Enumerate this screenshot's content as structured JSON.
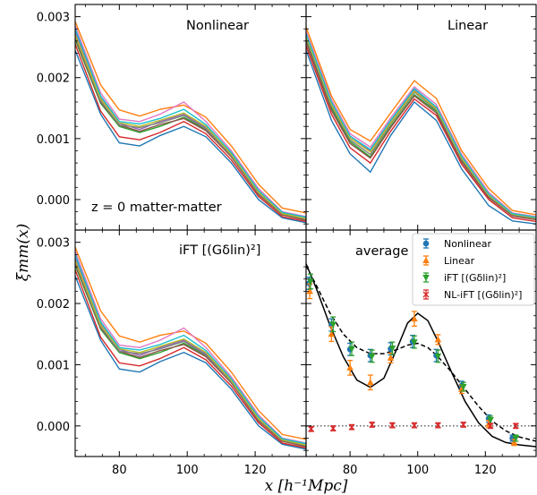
{
  "figure": {
    "xlabel": "x [h⁻¹Mpc]",
    "ylabel": "ξmm(x)"
  },
  "chart_data": {
    "type": "line",
    "x": [
      67,
      74.5,
      80,
      86,
      92,
      99,
      105.5,
      113,
      121,
      128,
      135
    ],
    "xlim": [
      67,
      135
    ],
    "ylim": [
      -0.0005,
      0.0032
    ],
    "x_ticks": [
      80,
      100,
      120
    ],
    "x_tick_labels": [
      "80",
      "100",
      "120"
    ],
    "y_ticks": [
      0,
      0.001,
      0.002,
      0.003
    ],
    "y_tick_labels": [
      "0.000",
      "0.001",
      "0.002",
      "0.003"
    ],
    "colors": [
      "#1f77b4",
      "#ff7f0e",
      "#2ca02c",
      "#d62728",
      "#9467bd",
      "#8c564b",
      "#e377c2",
      "#7f7f7f",
      "#bcbd22",
      "#17becf"
    ],
    "panels": [
      {
        "id": "nonlinear",
        "label": "Nonlinear",
        "note": "z = 0  matter-matter",
        "curves": [
          [
            0.00245,
            0.0014,
            0.00093,
            0.00088,
            0.00105,
            0.0012,
            0.00103,
            0.0006,
            0.0,
            -0.0003,
            -0.00038
          ],
          [
            0.00292,
            0.00188,
            0.00147,
            0.00137,
            0.00148,
            0.00155,
            0.00135,
            0.00088,
            0.00025,
            -0.00014,
            -0.00022
          ],
          [
            0.00262,
            0.00158,
            0.0012,
            0.0011,
            0.0012,
            0.00135,
            0.00115,
            0.0007,
            0.0001,
            -0.00025,
            -0.00033
          ],
          [
            0.00255,
            0.00145,
            0.00103,
            0.00098,
            0.0011,
            0.00128,
            0.00108,
            0.00065,
            5e-05,
            -0.00028,
            -0.00036
          ],
          [
            0.00275,
            0.00168,
            0.00125,
            0.00115,
            0.00128,
            0.0014,
            0.00118,
            0.00075,
            0.00012,
            -0.00022,
            -0.0003
          ],
          [
            0.00265,
            0.0016,
            0.00122,
            0.00112,
            0.00123,
            0.00133,
            0.00113,
            0.0007,
            8e-05,
            -0.00025,
            -0.00034
          ],
          [
            0.00285,
            0.00175,
            0.00132,
            0.00128,
            0.0014,
            0.0016,
            0.00128,
            0.0008,
            0.00018,
            -0.0002,
            -0.00028
          ],
          [
            0.00268,
            0.00162,
            0.00122,
            0.00118,
            0.00126,
            0.00138,
            0.00116,
            0.00072,
            0.0001,
            -0.00023,
            -0.00032
          ],
          [
            0.0027,
            0.00165,
            0.00126,
            0.0012,
            0.0013,
            0.00142,
            0.0012,
            0.00074,
            0.00012,
            -0.00023,
            -0.00031
          ],
          [
            0.0028,
            0.0017,
            0.00128,
            0.00124,
            0.00133,
            0.00148,
            0.00123,
            0.00077,
            0.00015,
            -0.00021,
            -0.00029
          ]
        ]
      },
      {
        "id": "linear",
        "label": "Linear",
        "note": "",
        "curves": [
          [
            0.00245,
            0.0013,
            0.00075,
            0.00045,
            0.00105,
            0.0016,
            0.0013,
            0.0005,
            -0.0001,
            -0.00035,
            -0.0004
          ],
          [
            0.00283,
            0.0017,
            0.00115,
            0.00096,
            0.00142,
            0.00195,
            0.00166,
            0.0008,
            0.00018,
            -0.00018,
            -0.00025
          ],
          [
            0.00262,
            0.0015,
            0.00095,
            0.0007,
            0.0012,
            0.00172,
            0.00145,
            0.00065,
            5e-05,
            -0.00026,
            -0.00032
          ],
          [
            0.00252,
            0.0014,
            0.00085,
            0.0006,
            0.00112,
            0.00165,
            0.00138,
            0.00058,
            0.0,
            -0.0003,
            -0.00036
          ],
          [
            0.0027,
            0.00158,
            0.00104,
            0.0008,
            0.00128,
            0.0018,
            0.0015,
            0.0007,
            8e-05,
            -0.00024,
            -0.0003
          ],
          [
            0.00258,
            0.00146,
            0.00092,
            0.00068,
            0.00118,
            0.0017,
            0.00142,
            0.00062,
            3e-05,
            -0.00027,
            -0.00033
          ],
          [
            0.00276,
            0.00164,
            0.00108,
            0.00086,
            0.00134,
            0.00185,
            0.00156,
            0.00074,
            0.00012,
            -0.00022,
            -0.00028
          ],
          [
            0.00265,
            0.00153,
            0.00098,
            0.00074,
            0.00124,
            0.00176,
            0.00147,
            0.00066,
            6e-05,
            -0.00025,
            -0.00031
          ],
          [
            0.00268,
            0.00156,
            0.00101,
            0.00078,
            0.00126,
            0.00178,
            0.00149,
            0.00068,
            7e-05,
            -0.00024,
            -0.0003
          ],
          [
            0.00272,
            0.0016,
            0.00104,
            0.00082,
            0.0013,
            0.00182,
            0.00152,
            0.00071,
            9e-05,
            -0.00023,
            -0.00029
          ]
        ]
      },
      {
        "id": "ift",
        "label": "iFT [(Gδlin)²]",
        "note": "",
        "curves": [
          [
            0.00245,
            0.0014,
            0.00093,
            0.00088,
            0.00105,
            0.0012,
            0.00103,
            0.0006,
            0.0,
            -0.0003,
            -0.00038
          ],
          [
            0.00292,
            0.00188,
            0.00147,
            0.00137,
            0.00148,
            0.00155,
            0.00135,
            0.00088,
            0.00025,
            -0.00014,
            -0.00022
          ],
          [
            0.00262,
            0.00158,
            0.0012,
            0.0011,
            0.0012,
            0.00135,
            0.00115,
            0.0007,
            0.0001,
            -0.00025,
            -0.00033
          ],
          [
            0.00255,
            0.00145,
            0.00103,
            0.00098,
            0.0011,
            0.00128,
            0.00108,
            0.00065,
            5e-05,
            -0.00028,
            -0.00036
          ],
          [
            0.00275,
            0.00168,
            0.00125,
            0.00115,
            0.00128,
            0.0014,
            0.00118,
            0.00075,
            0.00012,
            -0.00022,
            -0.0003
          ],
          [
            0.00265,
            0.0016,
            0.00122,
            0.00112,
            0.00123,
            0.00133,
            0.00113,
            0.0007,
            8e-05,
            -0.00025,
            -0.00034
          ],
          [
            0.00285,
            0.00175,
            0.00132,
            0.00128,
            0.0014,
            0.0016,
            0.00128,
            0.0008,
            0.00018,
            -0.0002,
            -0.00028
          ],
          [
            0.00268,
            0.00162,
            0.00122,
            0.00118,
            0.00126,
            0.00138,
            0.00116,
            0.00072,
            0.0001,
            -0.00023,
            -0.00032
          ],
          [
            0.0027,
            0.00165,
            0.00126,
            0.0012,
            0.0013,
            0.00142,
            0.0012,
            0.00074,
            0.00012,
            -0.00023,
            -0.00031
          ],
          [
            0.0028,
            0.0017,
            0.00128,
            0.00124,
            0.00133,
            0.00148,
            0.00123,
            0.00077,
            0.00015,
            -0.00021,
            -0.00029
          ]
        ]
      },
      {
        "id": "average",
        "label": "average",
        "note": "",
        "smooth_curves": [
          {
            "style": "solid",
            "x": [
              67,
              70,
              74,
              78,
              82,
              86,
              90,
              94,
              97,
              100,
              103,
              106,
              110,
              114,
              118,
              122,
              126,
              130,
              135
            ],
            "y": [
              0.00265,
              0.00225,
              0.00165,
              0.00113,
              0.00075,
              0.00063,
              0.00078,
              0.00128,
              0.00168,
              0.00184,
              0.00172,
              0.00138,
              0.00088,
              0.0004,
              5e-05,
              -0.00017,
              -0.00027,
              -0.00031,
              -0.00034
            ]
          },
          {
            "style": "dashed",
            "x": [
              67,
              70,
              74,
              78,
              82,
              86,
              90,
              94,
              97,
              100,
              103,
              106,
              110,
              114,
              118,
              122,
              126,
              130,
              135
            ],
            "y": [
              0.00262,
              0.0023,
              0.00185,
              0.0015,
              0.00128,
              0.00118,
              0.00118,
              0.00125,
              0.00132,
              0.00135,
              0.00128,
              0.00113,
              0.00088,
              0.0006,
              0.00032,
              8e-05,
              -8e-05,
              -0.00018,
              -0.00025
            ]
          },
          {
            "style": "dotted",
            "x": [
              67,
              135
            ],
            "y": [
              0.0,
              0.0
            ]
          }
        ],
        "series": [
          {
            "name": "Nonlinear",
            "marker": "circle",
            "color": "#1f77b4",
            "x": [
              67.9,
              74.5,
              80,
              86,
              92,
              98.5,
              105.5,
              113,
              121,
              128
            ],
            "y": [
              0.00233,
              0.00165,
              0.00125,
              0.00115,
              0.00126,
              0.00138,
              0.00115,
              0.00066,
              0.00012,
              -0.0002
            ],
            "err": [
              0.0001,
              0.0001,
              0.0001,
              0.0001,
              0.0001,
              0.0001,
              0.0001,
              7e-05,
              6e-05,
              5e-05
            ]
          },
          {
            "name": "Linear",
            "marker": "triangle-up",
            "color": "#ff7f0e",
            "x": [
              68.1,
              74.5,
              80,
              86,
              92,
              99,
              106,
              113,
              121,
              128.5
            ],
            "y": [
              0.0022,
              0.0015,
              0.00095,
              0.00071,
              0.00111,
              0.00175,
              0.00141,
              0.0006,
              3e-05,
              -0.00027
            ],
            "err": [
              0.00012,
              0.00012,
              0.00012,
              0.00012,
              8e-05,
              0.00012,
              8e-05,
              7e-05,
              6e-05,
              5e-05
            ]
          },
          {
            "name": "iFT [(Gδlin)²]",
            "marker": "triangle-down",
            "color": "#2ca02c",
            "x": [
              68.3,
              75,
              80.5,
              86.5,
              92.5,
              99,
              106,
              113.5,
              121.5,
              129
            ],
            "y": [
              0.00236,
              0.00166,
              0.00126,
              0.00114,
              0.00127,
              0.00137,
              0.00114,
              0.00064,
              0.0001,
              -0.0002
            ],
            "err": [
              0.00012,
              0.00012,
              0.00011,
              0.0001,
              0.0001,
              0.0001,
              0.0001,
              7e-05,
              6e-05,
              5e-05
            ]
          },
          {
            "name": "NL-iFT [(Gδlin)²]",
            "marker": "x",
            "color": "#d62728",
            "x": [
              68.5,
              75,
              80.5,
              86.5,
              92.5,
              99,
              106,
              113.5,
              121.5,
              129
            ],
            "y": [
              -5e-05,
              -4e-05,
              -2e-05,
              2e-05,
              1e-05,
              1e-05,
              1e-05,
              2e-05,
              0.0,
              0.0
            ],
            "err": [
              4e-05,
              4e-05,
              4e-05,
              4e-05,
              4e-05,
              4e-05,
              4e-05,
              4e-05,
              4e-05,
              4e-05
            ]
          }
        ]
      }
    ]
  }
}
